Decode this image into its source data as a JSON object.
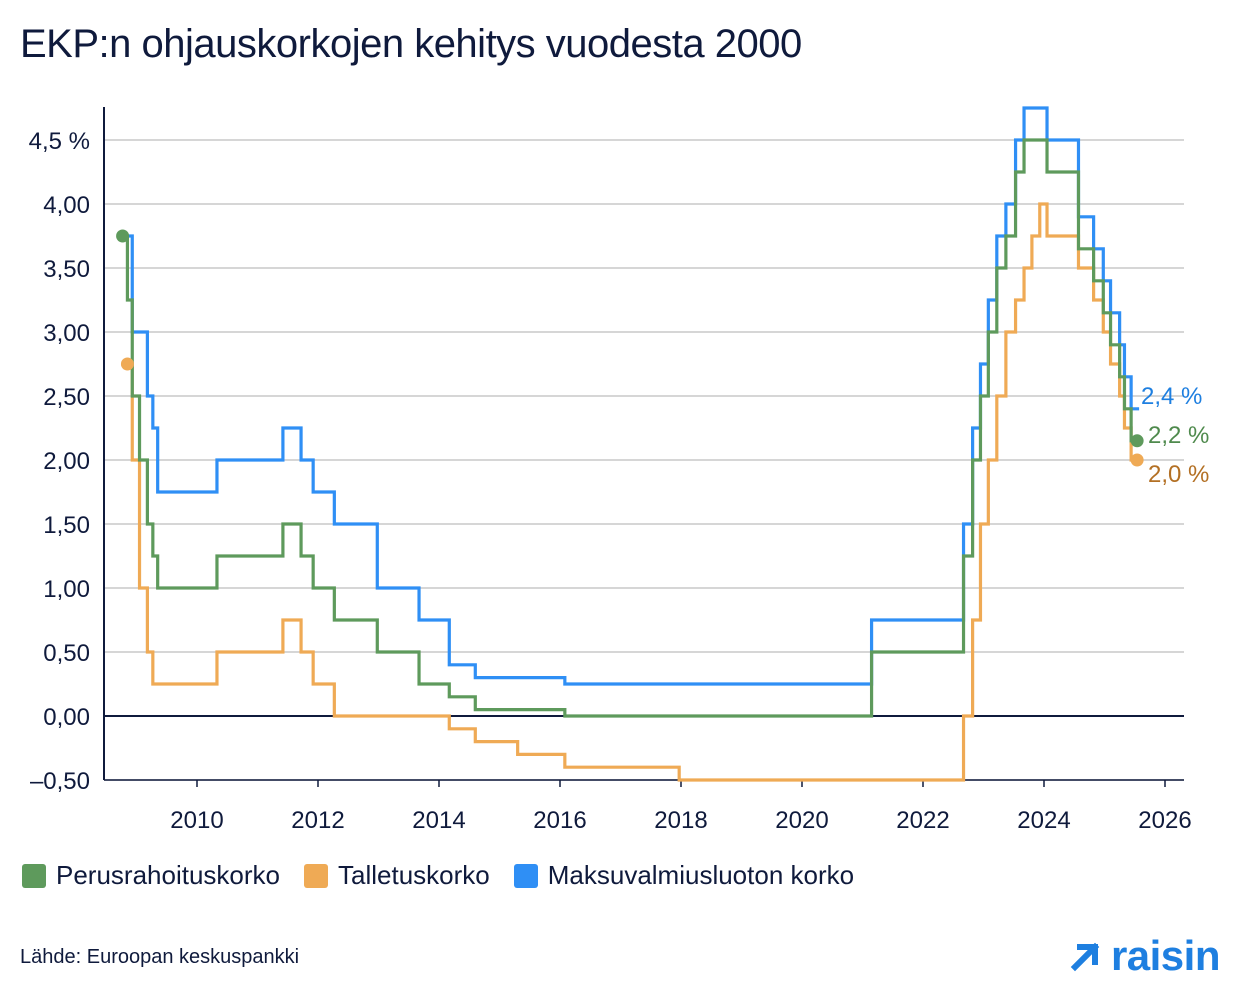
{
  "title": "EKP:n ohjauskorkojen kehitys vuodesta 2000",
  "source": "Lähde: Euroopan keskuspankki",
  "brand": {
    "name": "raisin",
    "icon": "arrow-up-right-icon",
    "color": "#1e7fe0"
  },
  "chart_data": {
    "type": "line",
    "step": true,
    "xlim": [
      2008.5,
      2026.4
    ],
    "ylim": [
      -0.5,
      4.75
    ],
    "x_ticks": [
      {
        "value": 2010,
        "label": "2010"
      },
      {
        "value": 2012,
        "label": "2012"
      },
      {
        "value": 2014,
        "label": "2014"
      },
      {
        "value": 2016,
        "label": "2016"
      },
      {
        "value": 2018,
        "label": "2018"
      },
      {
        "value": 2020,
        "label": "2020"
      },
      {
        "value": 2022,
        "label": "2022"
      },
      {
        "value": 2024,
        "label": "2024"
      },
      {
        "value": 2026,
        "label": "2026"
      }
    ],
    "y_ticks": [
      {
        "value": -0.5,
        "label": "–0,50"
      },
      {
        "value": 0,
        "label": "0,00"
      },
      {
        "value": 0.5,
        "label": "0,50"
      },
      {
        "value": 1,
        "label": "1,00"
      },
      {
        "value": 1.5,
        "label": "1,50"
      },
      {
        "value": 2,
        "label": "2,00"
      },
      {
        "value": 2.5,
        "label": "2,50"
      },
      {
        "value": 3,
        "label": "3,00"
      },
      {
        "value": 3.5,
        "label": "3,50"
      },
      {
        "value": 4,
        "label": "4,00"
      },
      {
        "value": 4.5,
        "label": "4,5 %"
      }
    ],
    "grid": true,
    "legend_position": "bottom-left",
    "series": [
      {
        "name": "Perusrahoituskorko",
        "color": "#5e9a5c",
        "end_label": "2,2 %",
        "end_label_color": "#4f8a4d",
        "points": [
          [
            2008.77,
            3.75
          ],
          [
            2008.85,
            3.25
          ],
          [
            2008.93,
            2.5
          ],
          [
            2009.05,
            2.0
          ],
          [
            2009.18,
            1.5
          ],
          [
            2009.27,
            1.25
          ],
          [
            2009.35,
            1.0
          ],
          [
            2010.33,
            1.25
          ],
          [
            2011.42,
            1.5
          ],
          [
            2011.72,
            1.25
          ],
          [
            2011.92,
            1.0
          ],
          [
            2012.27,
            0.75
          ],
          [
            2012.98,
            0.5
          ],
          [
            2013.67,
            0.25
          ],
          [
            2014.17,
            0.15
          ],
          [
            2014.6,
            0.05
          ],
          [
            2016.08,
            0.0
          ],
          [
            2021.15,
            0.5
          ],
          [
            2022.67,
            1.25
          ],
          [
            2022.82,
            2.0
          ],
          [
            2022.95,
            2.5
          ],
          [
            2023.08,
            3.0
          ],
          [
            2023.22,
            3.5
          ],
          [
            2023.37,
            3.75
          ],
          [
            2023.53,
            4.25
          ],
          [
            2023.67,
            4.5
          ],
          [
            2024.05,
            4.25
          ],
          [
            2024.57,
            3.65
          ],
          [
            2024.82,
            3.4
          ],
          [
            2024.98,
            3.15
          ],
          [
            2025.1,
            2.9
          ],
          [
            2025.25,
            2.65
          ],
          [
            2025.33,
            2.4
          ],
          [
            2025.44,
            2.15
          ]
        ]
      },
      {
        "name": "Talletuskorko",
        "color": "#efaa55",
        "end_label": "2,0 %",
        "end_label_color": "#b37024",
        "points": [
          [
            2008.85,
            2.75
          ],
          [
            2008.93,
            2.0
          ],
          [
            2009.05,
            1.0
          ],
          [
            2009.18,
            0.5
          ],
          [
            2009.27,
            0.25
          ],
          [
            2010.33,
            0.5
          ],
          [
            2011.42,
            0.75
          ],
          [
            2011.72,
            0.5
          ],
          [
            2011.92,
            0.25
          ],
          [
            2012.27,
            0.0
          ],
          [
            2014.17,
            -0.1
          ],
          [
            2014.6,
            -0.2
          ],
          [
            2015.3,
            -0.3
          ],
          [
            2016.08,
            -0.4
          ],
          [
            2017.97,
            -0.5
          ],
          [
            2021.15,
            -0.5
          ],
          [
            2022.67,
            0.0
          ],
          [
            2022.82,
            0.75
          ],
          [
            2022.95,
            1.5
          ],
          [
            2023.08,
            2.0
          ],
          [
            2023.22,
            2.5
          ],
          [
            2023.37,
            3.0
          ],
          [
            2023.53,
            3.25
          ],
          [
            2023.67,
            3.5
          ],
          [
            2023.8,
            3.75
          ],
          [
            2023.93,
            4.0
          ],
          [
            2024.05,
            3.75
          ],
          [
            2024.57,
            3.5
          ],
          [
            2024.82,
            3.25
          ],
          [
            2024.98,
            3.0
          ],
          [
            2025.1,
            2.75
          ],
          [
            2025.25,
            2.5
          ],
          [
            2025.33,
            2.25
          ],
          [
            2025.44,
            2.0
          ]
        ]
      },
      {
        "name": "Maksuvalmiusluoton korko",
        "color": "#2f8ff5",
        "end_label": "2,4 %",
        "end_label_color": "#1e7fe0",
        "points": [
          [
            2008.85,
            3.75
          ],
          [
            2008.93,
            3.0
          ],
          [
            2009.18,
            2.5
          ],
          [
            2009.27,
            2.25
          ],
          [
            2009.35,
            1.75
          ],
          [
            2010.33,
            2.0
          ],
          [
            2011.42,
            2.25
          ],
          [
            2011.72,
            2.0
          ],
          [
            2011.92,
            1.75
          ],
          [
            2012.27,
            1.5
          ],
          [
            2012.98,
            1.0
          ],
          [
            2013.67,
            0.75
          ],
          [
            2014.17,
            0.4
          ],
          [
            2014.6,
            0.3
          ],
          [
            2016.08,
            0.25
          ],
          [
            2021.15,
            0.75
          ],
          [
            2022.67,
            1.5
          ],
          [
            2022.82,
            2.25
          ],
          [
            2022.95,
            2.75
          ],
          [
            2023.08,
            3.25
          ],
          [
            2023.22,
            3.75
          ],
          [
            2023.37,
            4.0
          ],
          [
            2023.53,
            4.5
          ],
          [
            2023.67,
            4.75
          ],
          [
            2024.05,
            4.5
          ],
          [
            2024.57,
            3.9
          ],
          [
            2024.82,
            3.65
          ],
          [
            2024.98,
            3.4
          ],
          [
            2025.1,
            3.15
          ],
          [
            2025.25,
            2.9
          ],
          [
            2025.33,
            2.65
          ],
          [
            2025.44,
            2.4
          ]
        ]
      }
    ]
  }
}
